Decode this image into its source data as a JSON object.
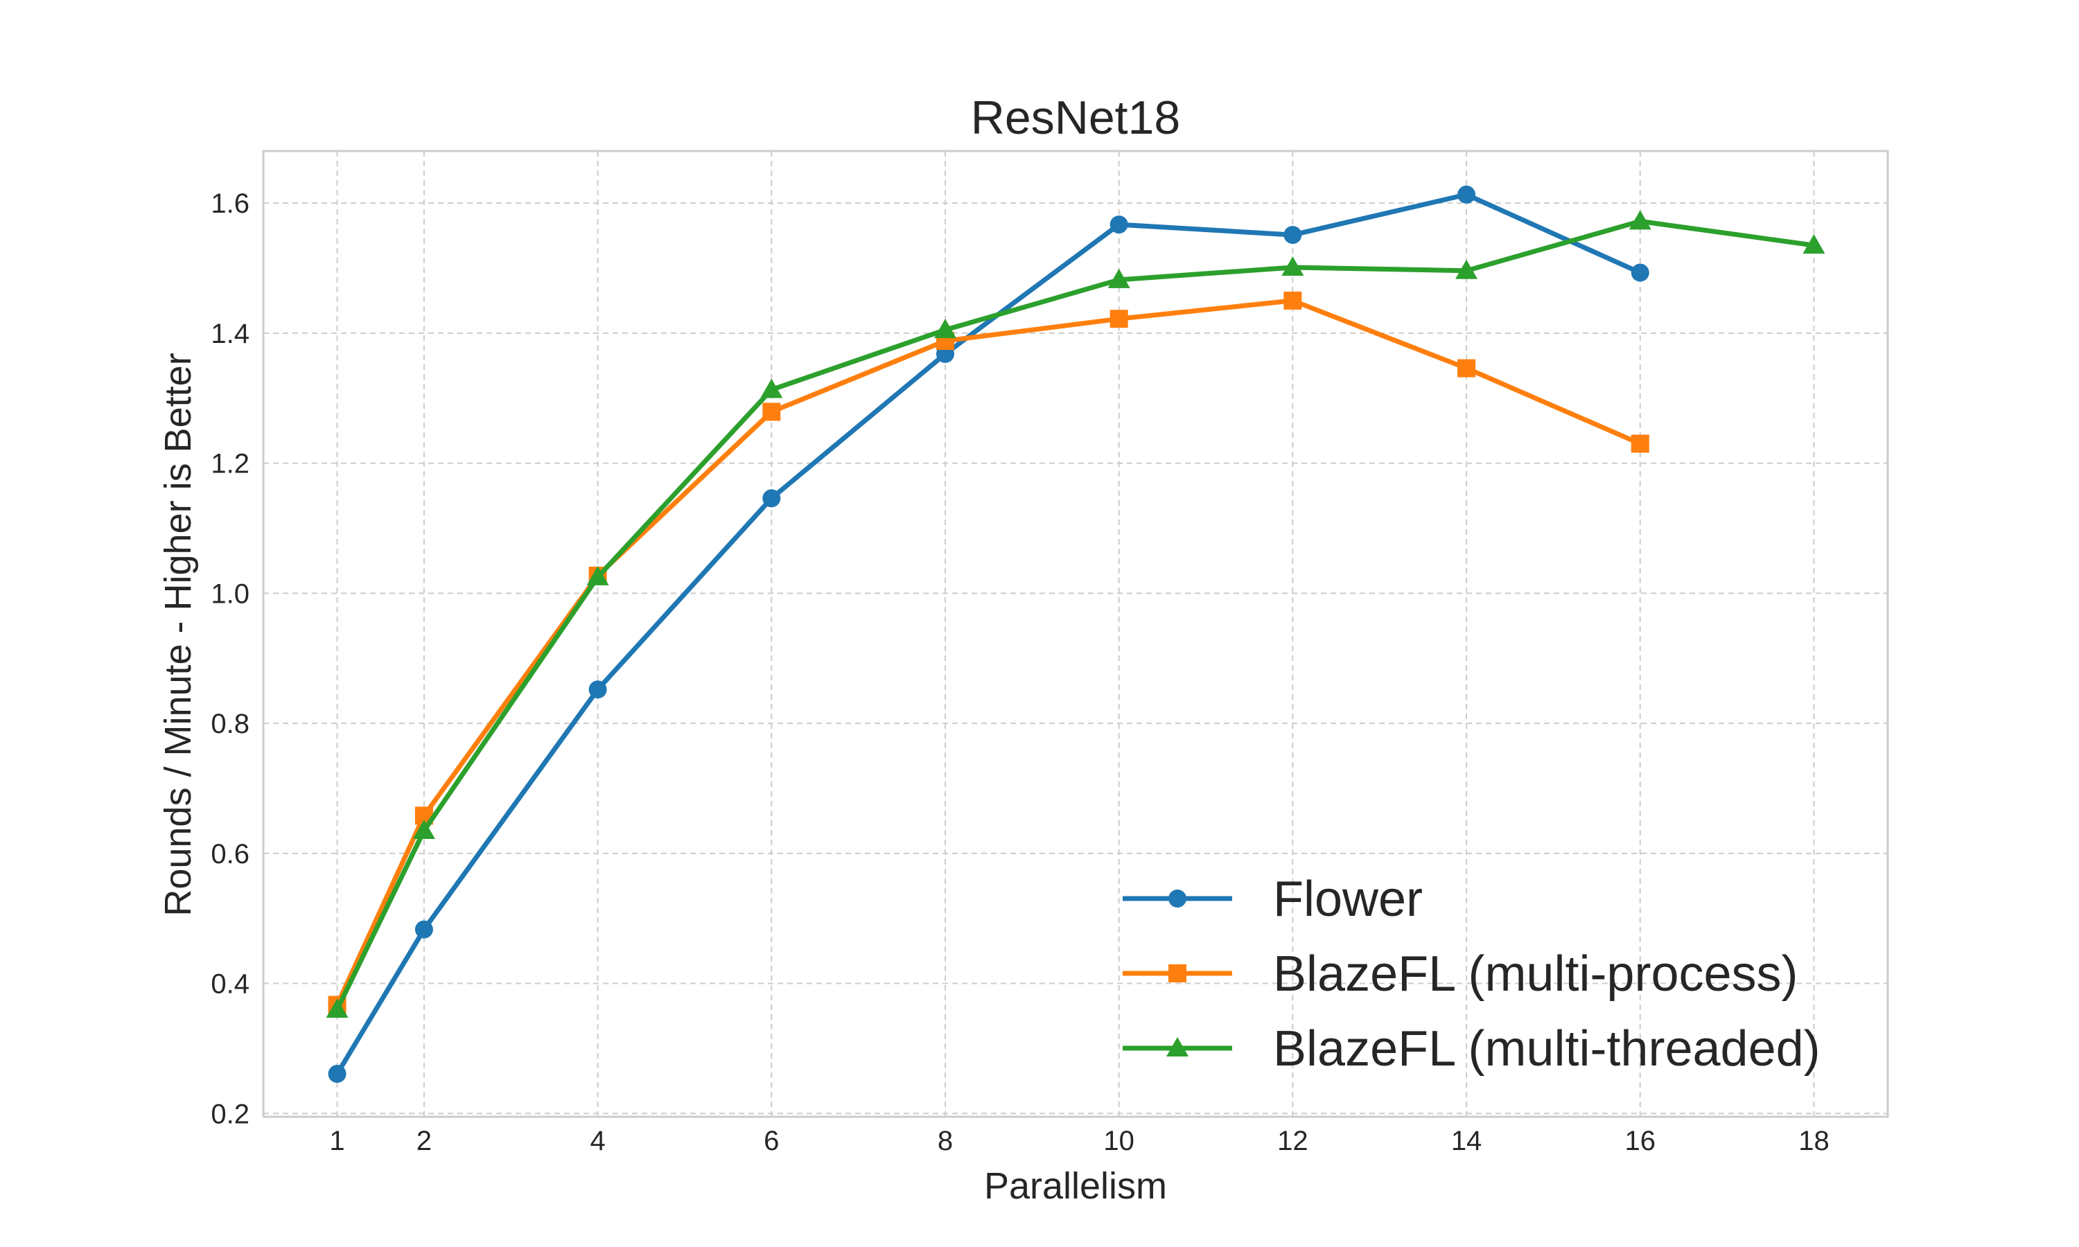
{
  "chart_data": {
    "type": "line",
    "title": "ResNet18",
    "xlabel": "Parallelism",
    "ylabel": "Rounds / Minute - Higher is Better",
    "xlim": [
      0.15,
      18.85
    ],
    "ylim": [
      0.195,
      1.68
    ],
    "x_ticks": [
      1,
      2,
      4,
      6,
      8,
      10,
      12,
      14,
      16,
      18
    ],
    "y_ticks": [
      0.2,
      0.4,
      0.6,
      0.8,
      1.0,
      1.2,
      1.4,
      1.6
    ],
    "y_tick_labels": [
      "0.2",
      "0.4",
      "0.6",
      "0.8",
      "1.0",
      "1.2",
      "1.4",
      "1.6"
    ],
    "grid": true,
    "legend_position": "lower-right",
    "series": [
      {
        "name": "Flower",
        "color": "#1f77b4",
        "marker": "circle",
        "x": [
          1,
          2,
          4,
          6,
          8,
          10,
          12,
          14,
          16
        ],
        "y": [
          0.261,
          0.483,
          0.852,
          1.146,
          1.368,
          1.567,
          1.551,
          1.613,
          1.493
        ]
      },
      {
        "name": "BlazeFL (multi-process)",
        "color": "#ff7f0e",
        "marker": "square",
        "x": [
          1,
          2,
          4,
          6,
          8,
          10,
          12,
          14,
          16
        ],
        "y": [
          0.367,
          0.658,
          1.027,
          1.279,
          1.388,
          1.422,
          1.45,
          1.346,
          1.23
        ]
      },
      {
        "name": "BlazeFL (multi-threaded)",
        "color": "#2ca02c",
        "marker": "triangle",
        "x": [
          1,
          2,
          4,
          6,
          8,
          10,
          12,
          14,
          16,
          18
        ],
        "y": [
          0.36,
          0.635,
          1.025,
          1.313,
          1.405,
          1.482,
          1.501,
          1.496,
          1.572,
          1.535
        ]
      }
    ]
  }
}
